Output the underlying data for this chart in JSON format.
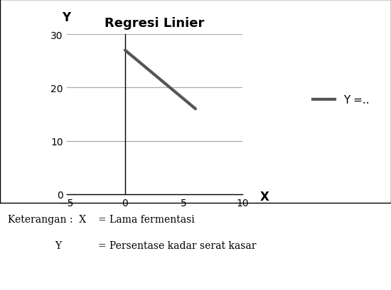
{
  "title": "Regresi Linier",
  "title_fontsize": 13,
  "title_fontweight": "bold",
  "xlabel": "X",
  "ylabel": "Y",
  "xlabel_fontsize": 12,
  "ylabel_fontsize": 12,
  "xlim": [
    -5,
    10
  ],
  "ylim": [
    0,
    30
  ],
  "xticks": [
    -5,
    0,
    5,
    10
  ],
  "yticks": [
    0,
    10,
    20,
    30
  ],
  "line_x": [
    0,
    6
  ],
  "line_y": [
    27,
    16
  ],
  "line_color": "#555555",
  "line_width": 3,
  "legend_label": "Y =..",
  "legend_color": "#555555",
  "background_color": "#ffffff",
  "grid_color": "#aaaaaa",
  "caption1_left": "Keterangan :  X",
  "caption1_right": "= Lama fermentasi",
  "caption2_left": "Y",
  "caption2_right": "= Persentase kadar serat kasar",
  "caption_fontsize": 10
}
